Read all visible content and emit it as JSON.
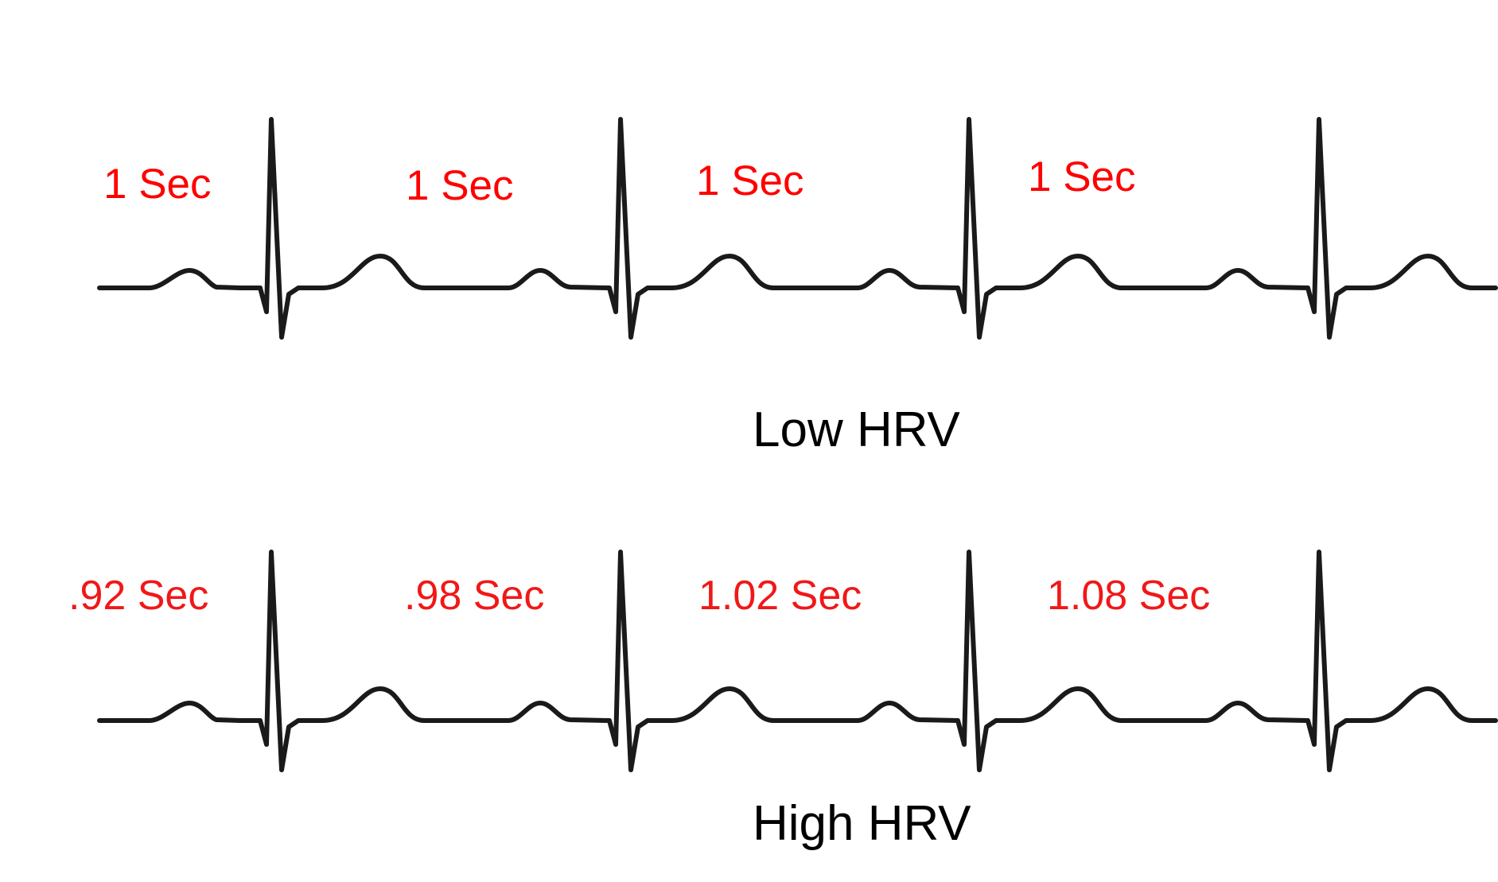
{
  "panels": [
    {
      "id": "low",
      "caption": "Low HRV",
      "intervals": [
        "1 Sec",
        "1 Sec",
        "1 Sec",
        "1 Sec"
      ]
    },
    {
      "id": "high",
      "caption": "High HRV",
      "intervals": [
        ".92 Sec",
        ".98 Sec",
        "1.02 Sec",
        "1.08 Sec"
      ]
    }
  ],
  "colors": {
    "trace": "#1a1a1a",
    "interval_text": "#ff0000",
    "caption_text": "#000000"
  }
}
